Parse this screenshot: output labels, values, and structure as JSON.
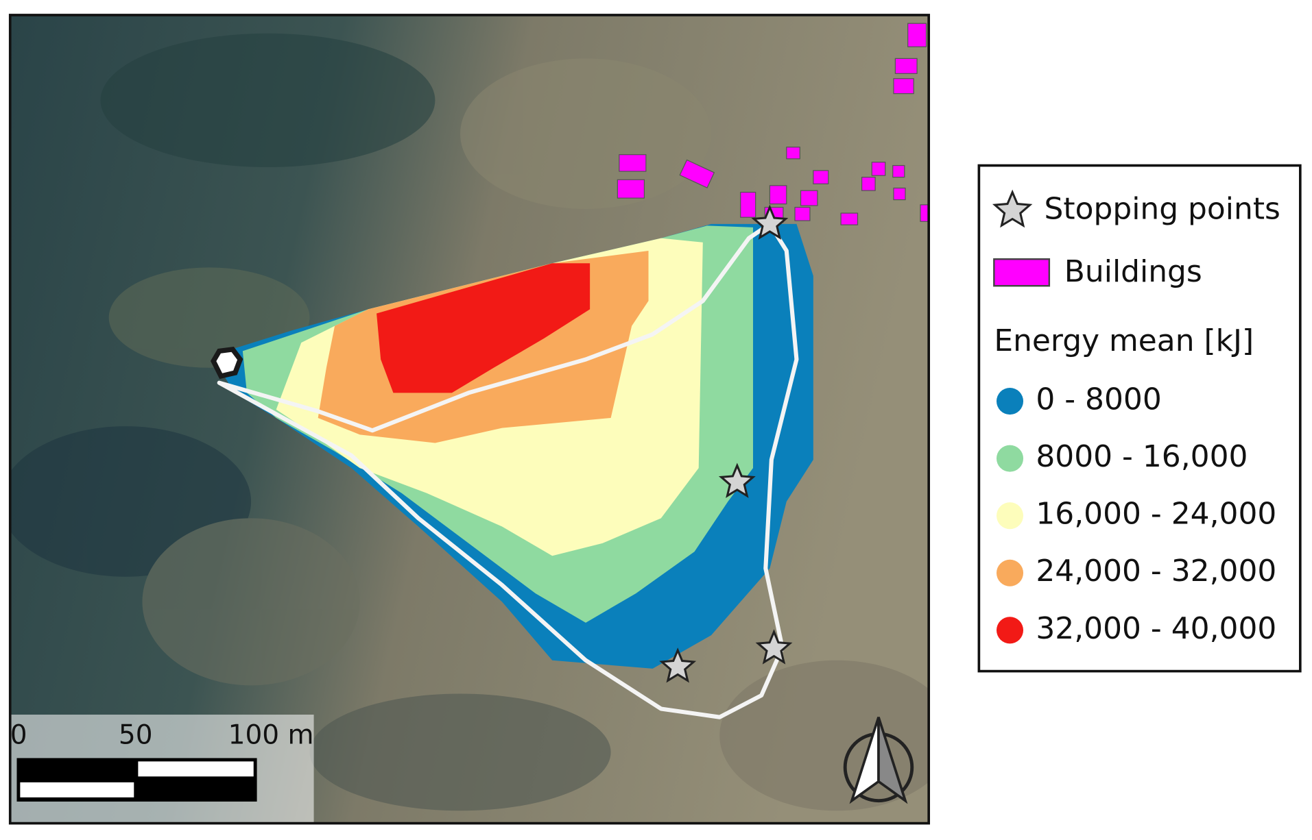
{
  "map": {
    "legend": {
      "stopping_points": "Stopping points",
      "buildings": "Buildings",
      "energy_title": "Energy mean [kJ]",
      "classes": [
        {
          "label": "0 - 8000",
          "color": "#0a80bb"
        },
        {
          "label": "8000 - 16,000",
          "color": "#8fdaa0"
        },
        {
          "label": "16,000 - 24,000",
          "color": "#fdfdbb"
        },
        {
          "label": "24,000 - 32,000",
          "color": "#f9aa5c"
        },
        {
          "label": "32,000 - 40,000",
          "color": "#f21a16"
        }
      ]
    },
    "scale_bar": {
      "labels": [
        "0",
        "50",
        "100 m"
      ]
    }
  }
}
